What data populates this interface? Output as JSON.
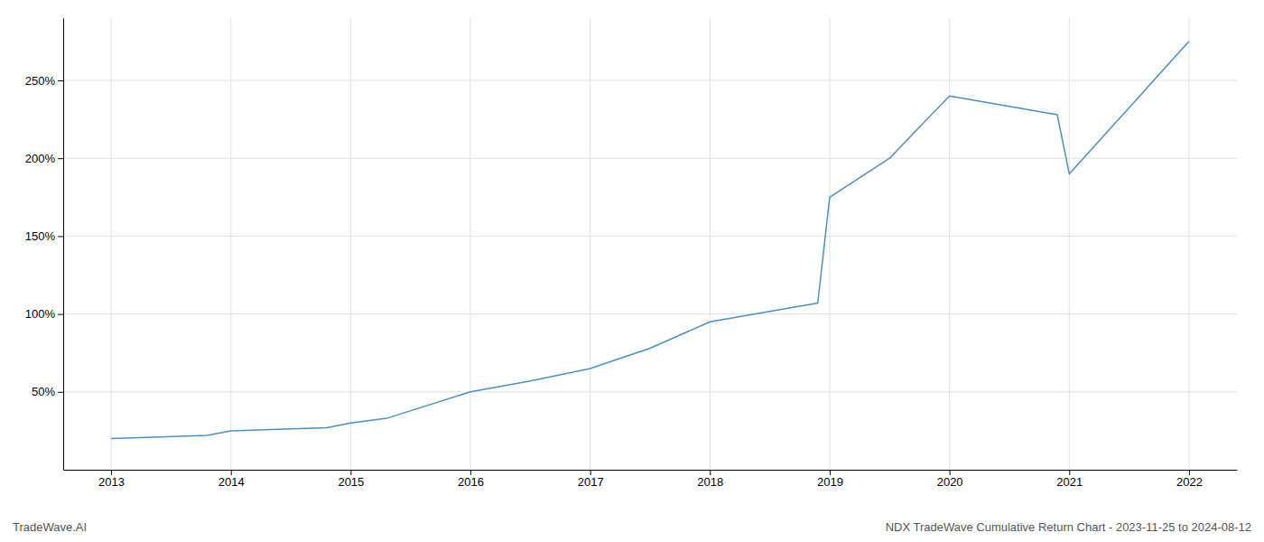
{
  "chart_data": {
    "type": "line",
    "x": [
      2013,
      2013.8,
      2014,
      2014.8,
      2015,
      2015.3,
      2016,
      2016.5,
      2017,
      2017.5,
      2018,
      2018.9,
      2019,
      2019.5,
      2020,
      2020.9,
      2021,
      2022
    ],
    "values": [
      20,
      22,
      25,
      27,
      30,
      33,
      50,
      57,
      65,
      78,
      95,
      107,
      175,
      200,
      240,
      228,
      190,
      275
    ],
    "color": "#4a90c4",
    "xlim": [
      2012.6,
      2022.4
    ],
    "ylim": [
      0,
      290
    ],
    "xticks": [
      2013,
      2014,
      2015,
      2016,
      2017,
      2018,
      2019,
      2020,
      2021,
      2022
    ],
    "yticks": [
      {
        "value": 50,
        "label": "50%"
      },
      {
        "value": 100,
        "label": "100%"
      },
      {
        "value": 150,
        "label": "150%"
      },
      {
        "value": 200,
        "label": "200%"
      },
      {
        "value": 250,
        "label": "250%"
      }
    ],
    "grid": true,
    "annotations": [
      "TradeWave.AI",
      "NDX TradeWave Cumulative Return Chart - 2023-11-25 to 2024-08-12"
    ]
  }
}
